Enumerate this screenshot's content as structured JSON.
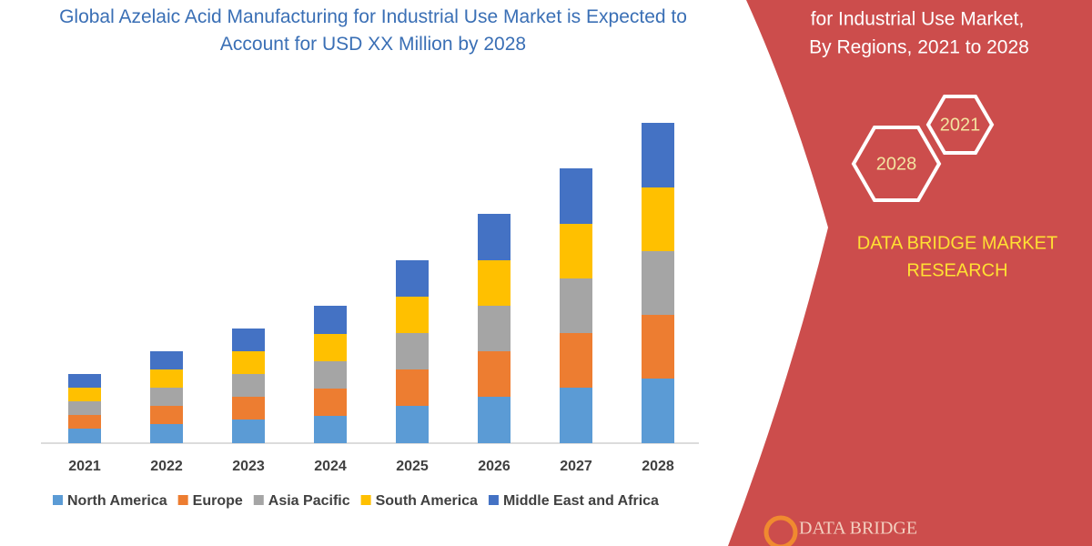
{
  "chart_data": {
    "type": "stacked-bar",
    "title": "Global Azelaic Acid Manufacturing for Industrial Use Market is Expected to Account for USD XX Million by 2028",
    "categories": [
      "2021",
      "2022",
      "2023",
      "2024",
      "2025",
      "2026",
      "2027",
      "2028"
    ],
    "series": [
      {
        "name": "North America",
        "color": "#5b9bd5",
        "values": [
          16,
          21,
          26,
          30,
          41,
          51,
          61,
          71
        ]
      },
      {
        "name": "Europe",
        "color": "#ed7d31",
        "values": [
          15,
          20,
          25,
          30,
          40,
          50,
          60,
          70
        ]
      },
      {
        "name": "Asia Pacific",
        "color": "#a5a5a5",
        "values": [
          15,
          20,
          25,
          30,
          40,
          50,
          60,
          70
        ]
      },
      {
        "name": "South America",
        "color": "#ffc000",
        "values": [
          15,
          20,
          25,
          30,
          40,
          50,
          60,
          70
        ]
      },
      {
        "name": "Middle East and Africa",
        "color": "#4472c4",
        "values": [
          15,
          20,
          25,
          31,
          40,
          51,
          61,
          71
        ]
      }
    ],
    "ylim": [
      0,
      360
    ],
    "legend": "bottom"
  },
  "panel": {
    "heading_lines": [
      "for Industrial Use Market,",
      "By Regions, 2021 to 2028"
    ],
    "badges": [
      "2021",
      "2028"
    ],
    "brand_lines": [
      "DATA BRIDGE MARKET",
      "RESEARCH"
    ],
    "logo": "DATA BRIDGE"
  }
}
